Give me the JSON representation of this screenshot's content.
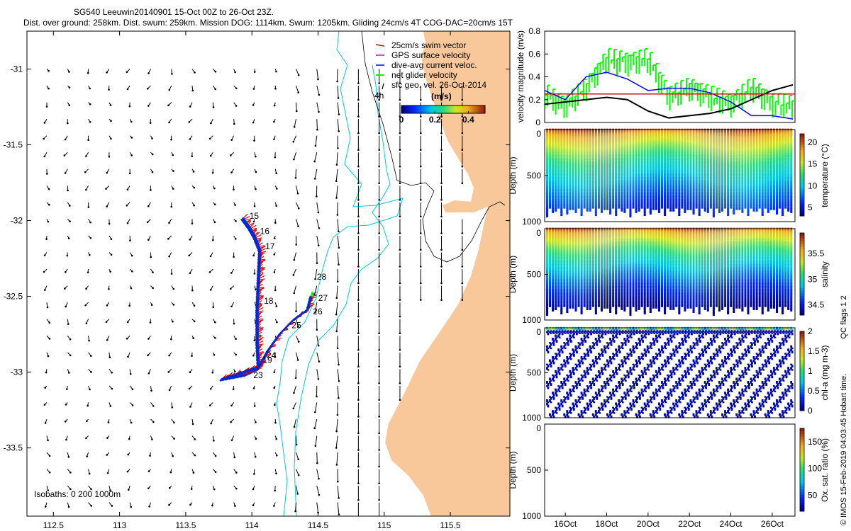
{
  "header": {
    "line1": "SG540 Leeuwin20140901 15-Oct 00Z to 26-Oct 23Z.",
    "line2": "Dist. over ground: 258km. Dist. swum: 259km. Mission DOG: 1114km. Swum: 1205km. Gliding 24cm/s 4T COG-DAC=20cm/s 15T"
  },
  "colors": {
    "land": "#f8c89a",
    "isobath": "#00c8e6",
    "coast_contour": "#000000",
    "track_red": "#e60000",
    "track_blue": "#0028d2",
    "net_velocity": "#00ff00",
    "threshold": "#e60000"
  },
  "chart_data": [
    {
      "type": "scatter",
      "name": "map",
      "xlim": [
        112.3,
        115.95
      ],
      "ylim": [
        -33.95,
        -30.75
      ],
      "xticks": [
        "112.5",
        "113",
        "113.5",
        "114",
        "114.5",
        "115",
        "115.5"
      ],
      "xtick_values": [
        112.5,
        113,
        113.5,
        114,
        114.5,
        115,
        115.5
      ],
      "yticks": [
        "-31",
        "-31.5",
        "-32",
        "-32.5",
        "-33",
        "-33.5"
      ],
      "ytick_values": [
        -31,
        -31.5,
        -32,
        -32.5,
        -33,
        -33.5
      ],
      "legend": [
        {
          "label": "25cm/s swim vector",
          "color": "#e60000"
        },
        {
          "label": "GPS surface velocity",
          "color": "#c800c8"
        },
        {
          "label": "dive-avg current veloc.",
          "color": "#0000ff"
        },
        {
          "label": "net glider velocity",
          "color": "#00ff00"
        },
        {
          "label": "sfc geo. vel. 26-Oct-2014",
          "color": "#000000"
        }
      ],
      "legend_extra": "4h",
      "colorbar": {
        "title": "(m/s)",
        "ticks": [
          "0",
          "0.2",
          "0.4"
        ],
        "tick_values": [
          0,
          0.2,
          0.4
        ],
        "range": [
          0,
          0.5
        ]
      },
      "isobaths_note": "Isobaths: 0   200  1000m",
      "track": [
        {
          "lon": 113.94,
          "lat": -31.98
        },
        {
          "lon": 113.99,
          "lat": -32.04
        },
        {
          "lon": 114.03,
          "lat": -32.1
        },
        {
          "lon": 114.07,
          "lat": -32.19
        },
        {
          "lon": 114.06,
          "lat": -32.37
        },
        {
          "lon": 114.05,
          "lat": -32.58
        },
        {
          "lon": 114.05,
          "lat": -32.8
        },
        {
          "lon": 114.06,
          "lat": -32.97
        },
        {
          "lon": 113.96,
          "lat": -33.01
        },
        {
          "lon": 113.78,
          "lat": -33.04
        },
        {
          "lon": 114.06,
          "lat": -32.96
        },
        {
          "lon": 114.13,
          "lat": -32.85
        },
        {
          "lon": 114.22,
          "lat": -32.74
        },
        {
          "lon": 114.32,
          "lat": -32.65
        },
        {
          "lon": 114.43,
          "lat": -32.58
        },
        {
          "lon": 114.46,
          "lat": -32.48
        }
      ],
      "day_labels": [
        {
          "text": "15",
          "lon": 113.96,
          "lat": -31.97
        },
        {
          "text": "16",
          "lon": 114.04,
          "lat": -32.07
        },
        {
          "text": "17",
          "lon": 114.08,
          "lat": -32.17
        },
        {
          "text": "18",
          "lon": 114.07,
          "lat": -32.53
        },
        {
          "text": "19",
          "lon": 114.06,
          "lat": -32.92
        },
        {
          "text": "23",
          "lon": 113.99,
          "lat": -33.02
        },
        {
          "text": "24",
          "lon": 114.09,
          "lat": -32.89
        },
        {
          "text": "25",
          "lon": 114.28,
          "lat": -32.69
        },
        {
          "text": "26",
          "lon": 114.44,
          "lat": -32.6
        },
        {
          "text": "27",
          "lon": 114.48,
          "lat": -32.51
        },
        {
          "text": "28",
          "lon": 114.47,
          "lat": -32.37
        }
      ]
    },
    {
      "type": "line",
      "name": "velocity",
      "ylabel": "velocity magnitude (m/s)",
      "ylim": [
        0,
        0.8
      ],
      "yticks": [
        "0",
        "0.2",
        "0.4",
        "0.6",
        "0.8"
      ],
      "ytick_values": [
        0,
        0.2,
        0.4,
        0.6,
        0.8
      ],
      "x": [
        15,
        16,
        17,
        18,
        19,
        20,
        21,
        22,
        23,
        24,
        25,
        26,
        27
      ],
      "series": [
        {
          "values": [
            0.28,
            0.2,
            0.4,
            0.44,
            0.38,
            0.28,
            0.3,
            0.3,
            0.26,
            0.18,
            0.06,
            0.06,
            0.03
          ],
          "color": "#0000ff"
        },
        {
          "values": [
            0.16,
            0.18,
            0.2,
            0.22,
            0.2,
            0.1,
            0.04,
            0.06,
            0.08,
            0.12,
            0.2,
            0.28,
            0.33
          ],
          "color": "#000000"
        },
        {
          "values": [
            0.24,
            0.14,
            0.3,
            0.55,
            0.52,
            0.55,
            0.22,
            0.3,
            0.22,
            0.16,
            0.3,
            0.16,
            0.14
          ],
          "color": "#00ff00"
        }
      ],
      "threshold": 0.25
    },
    {
      "type": "scatter",
      "name": "temperature",
      "ylabel": "Depth (m)",
      "clabel": "temperature (°C)",
      "ylim": [
        1000,
        0
      ],
      "yticks": [
        "0",
        "500",
        "1000"
      ],
      "ytick_values": [
        0,
        500,
        1000
      ],
      "cticks": [
        "20",
        "15",
        "10",
        "5"
      ],
      "ctick_values": [
        20,
        15,
        10,
        5
      ],
      "crange": [
        3,
        22
      ]
    },
    {
      "type": "scatter",
      "name": "salinity",
      "ylabel": "Depth (m)",
      "clabel": "salinity",
      "ylim": [
        1000,
        0
      ],
      "yticks": [
        "0",
        "500",
        "1000"
      ],
      "ytick_values": [
        0,
        500,
        1000
      ],
      "cticks": [
        "35.5",
        "35",
        "34.5"
      ],
      "ctick_values": [
        35.5,
        35,
        34.5
      ],
      "crange": [
        34.3,
        35.9
      ]
    },
    {
      "type": "scatter",
      "name": "chla",
      "ylabel": "Depth (m)",
      "clabel": "chl-a (mg m-3)",
      "ylim": [
        1000,
        0
      ],
      "yticks": [
        "0",
        "500",
        "1000"
      ],
      "ytick_values": [
        0,
        500,
        1000
      ],
      "cticks": [
        "2",
        "1.5",
        "1",
        "0.5",
        "0"
      ],
      "ctick_values": [
        2,
        1.5,
        1,
        0.5,
        0
      ],
      "crange": [
        0,
        2
      ],
      "side_note": "QC flags 1  2"
    },
    {
      "type": "scatter",
      "name": "oxygen",
      "ylabel": "Depth (m)",
      "clabel": "Ox. sat. ratio (%)",
      "ylim": [
        1000,
        0
      ],
      "yticks": [
        "0",
        "500",
        "1000"
      ],
      "ytick_values": [
        0,
        500,
        1000
      ],
      "cticks": [
        "150",
        "100",
        "50"
      ],
      "ctick_values": [
        150,
        100,
        50
      ],
      "crange": [
        20,
        175
      ],
      "xticks": [
        "16Oct",
        "18Oct",
        "20Oct",
        "22Oct",
        "24Oct",
        "26Oct"
      ],
      "xtick_values": [
        16,
        18,
        20,
        22,
        24,
        26
      ],
      "xlim": [
        15,
        27.1
      ]
    }
  ],
  "credit": "© IMOS 15-Feb-2019 04:03:45 Hobart time."
}
